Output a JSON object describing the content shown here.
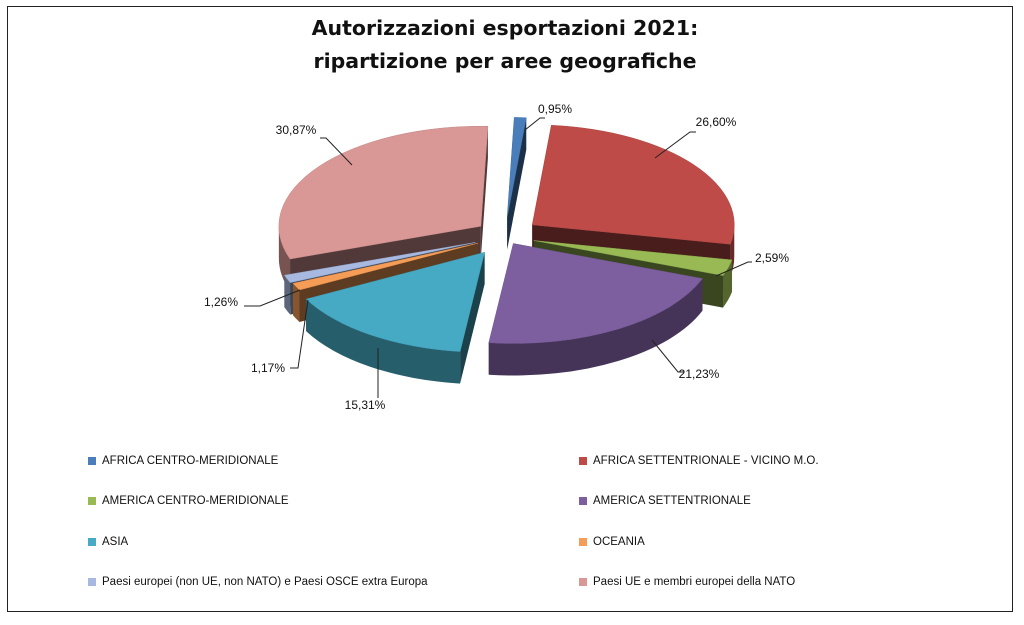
{
  "chart_data": {
    "type": "pie",
    "title_line1": "Autorizzazioni esportazioni 2021:",
    "title_line2": "ripartizione per aree geografiche",
    "slices": [
      {
        "name": "AFRICA CENTRO-MERIDIONALE",
        "value": 0.95,
        "label": "0,95%",
        "color": "#4a7ebb"
      },
      {
        "name": "AFRICA SETTENTRIONALE - VICINO M.O.",
        "value": 26.6,
        "label": "26,60%",
        "color": "#be4b48"
      },
      {
        "name": "AMERICA CENTRO-MERIDIONALE",
        "value": 2.59,
        "label": "2,59%",
        "color": "#98b954"
      },
      {
        "name": "AMERICA SETTENTRIONALE",
        "value": 21.23,
        "label": "21,23%",
        "color": "#7d5fa0"
      },
      {
        "name": "ASIA",
        "value": 15.31,
        "label": "15,31%",
        "color": "#46aac5"
      },
      {
        "name": "OCEANIA",
        "value": 1.17,
        "label": "1,17%",
        "color": "#f59d56"
      },
      {
        "name": "Paesi europei (non UE, non NATO) e Paesi OSCE extra Europa",
        "value": 1.26,
        "label": "1,26%",
        "color": "#a7b9e0"
      },
      {
        "name": "Paesi UE e membri europei della NATO",
        "value": 30.87,
        "label": "30,87%",
        "color": "#d99795"
      }
    ],
    "legend_position": "bottom"
  }
}
